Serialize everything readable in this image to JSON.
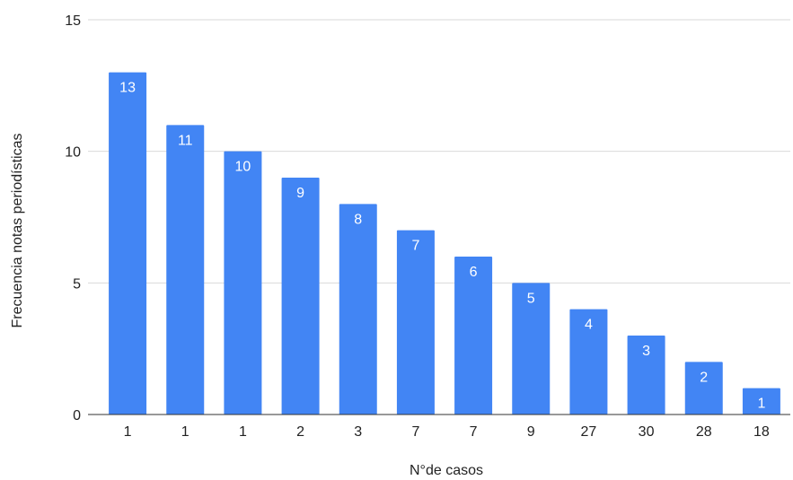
{
  "chart_data": {
    "type": "bar",
    "title": "",
    "xlabel": "N°de casos",
    "ylabel": "Frecuencia notas periodísticas",
    "categories": [
      "1",
      "1",
      "1",
      "2",
      "3",
      "7",
      "7",
      "9",
      "27",
      "30",
      "28",
      "18"
    ],
    "series": [
      {
        "values": [
          13,
          11,
          10,
          9,
          8,
          7,
          6,
          5,
          4,
          3,
          2,
          1
        ]
      }
    ],
    "ylim": [
      0,
      15
    ],
    "yticks": [
      0,
      5,
      10,
      15
    ],
    "grid": true,
    "legend": "none",
    "data_labels": true,
    "colors": {
      "bar": "#4285f4",
      "grid": "#d9d9d9",
      "text": "#222222",
      "data_label": "#ffffff"
    }
  }
}
